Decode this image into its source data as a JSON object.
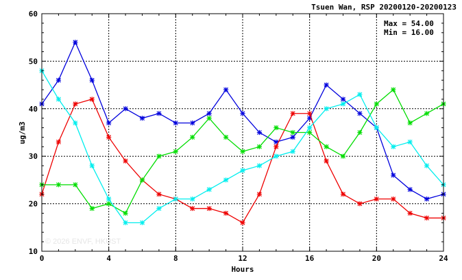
{
  "chart_data": {
    "type": "line",
    "title": "Tsuen Wan, RSP 20200120-20200123",
    "xlabel": "Hours",
    "ylabel": "ug/m3",
    "xlim": [
      0,
      24
    ],
    "ylim": [
      10,
      60
    ],
    "xticks": [
      0,
      4,
      8,
      12,
      16,
      20,
      24
    ],
    "yticks": [
      10,
      20,
      30,
      40,
      50,
      60
    ],
    "grid": true,
    "stats": {
      "max": "Max = 54.00",
      "min": "Min = 16.00"
    },
    "watermark": "© 2026  ENVF, HKUST",
    "x": [
      0,
      1,
      2,
      3,
      4,
      5,
      6,
      7,
      8,
      9,
      10,
      11,
      12,
      13,
      14,
      15,
      16,
      17,
      18,
      19,
      20,
      21,
      22,
      23,
      24
    ],
    "series": [
      {
        "color": "#0000dd",
        "values": [
          41,
          46,
          54,
          46,
          37,
          40,
          38,
          39,
          37,
          37,
          39,
          44,
          39,
          35,
          33,
          34,
          38,
          45,
          42,
          39,
          36,
          26,
          23,
          21,
          22
        ]
      },
      {
        "color": "#ee0000",
        "values": [
          22,
          33,
          41,
          42,
          34,
          29,
          25,
          22,
          21,
          19,
          19,
          18,
          16,
          22,
          32,
          39,
          39,
          29,
          22,
          20,
          21,
          21,
          18,
          17,
          17
        ]
      },
      {
        "color": "#00dd00",
        "values": [
          24,
          24,
          24,
          19,
          20,
          18,
          25,
          30,
          31,
          34,
          38,
          34,
          31,
          32,
          36,
          35,
          35,
          32,
          30,
          35,
          41,
          44,
          37,
          39,
          41
        ]
      },
      {
        "color": "#00eeee",
        "values": [
          48,
          42,
          37,
          28,
          21,
          16,
          16,
          19,
          21,
          21,
          23,
          25,
          27,
          28,
          30,
          31,
          36,
          40,
          41,
          43,
          36,
          32,
          33,
          28,
          24
        ]
      }
    ]
  }
}
